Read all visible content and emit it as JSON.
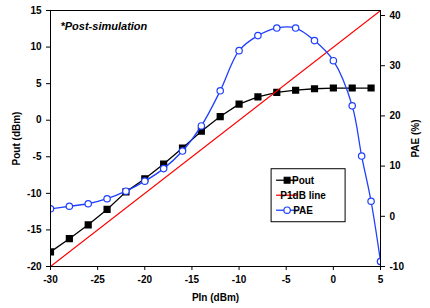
{
  "chart_data": {
    "type": "line",
    "annotations": [
      "*Post-simulation"
    ],
    "x_label": "PIn (dBm)",
    "y_label": "Pout (dBm)",
    "y2_label": "PAE (%)",
    "xlim": [
      -30,
      5
    ],
    "xticks": [
      -30,
      -25,
      -20,
      -15,
      -10,
      -5,
      0,
      5
    ],
    "ylim": [
      -20,
      15
    ],
    "yticks": [
      -20,
      -15,
      -10,
      -5,
      0,
      5,
      10,
      15
    ],
    "y2lim": [
      -10,
      41
    ],
    "y2ticks": [
      -10,
      0,
      10,
      20,
      30,
      40
    ],
    "legend": "lower right",
    "series": [
      {
        "name": "Pout",
        "color": "#000000",
        "marker": "square",
        "x": [
          -30,
          -28,
          -26,
          -24,
          -22,
          -20,
          -18,
          -16,
          -14,
          -12,
          -10,
          -8,
          -6,
          -4,
          -2,
          0,
          2,
          4
        ],
        "values": [
          -18,
          -16.2,
          -14.3,
          -12.2,
          -9.8,
          -8,
          -6,
          -3.8,
          -1.5,
          0.5,
          2.2,
          3.2,
          3.8,
          4.1,
          4.3,
          4.4,
          4.4,
          4.4
        ]
      },
      {
        "name": "P1dB line",
        "color": "#ff0000",
        "marker": "none",
        "x": [
          -30,
          5
        ],
        "values": [
          -20,
          15
        ]
      },
      {
        "name": "PAE",
        "color": "#1f3fff",
        "marker": "circle",
        "axis": "y2",
        "x": [
          -30,
          -28,
          -26,
          -24,
          -22,
          -20,
          -18,
          -16,
          -14,
          -12,
          -10,
          -8,
          -6,
          -4,
          -2,
          0,
          2,
          3,
          4,
          5
        ],
        "values": [
          1.5,
          2,
          2.5,
          3.5,
          5,
          7,
          9.5,
          13,
          18,
          25,
          33,
          36,
          37.5,
          37.5,
          35,
          31,
          22,
          12,
          3,
          -9
        ]
      }
    ]
  }
}
